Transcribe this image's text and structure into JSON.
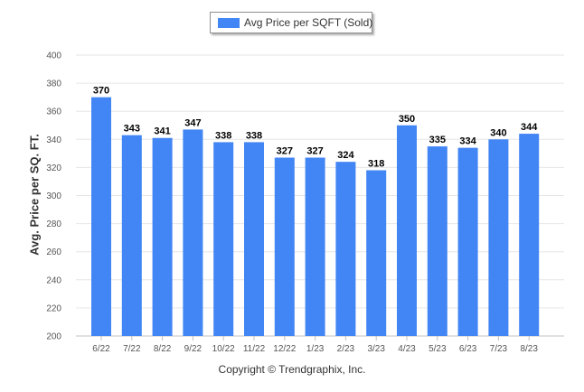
{
  "chart_data": {
    "type": "bar",
    "categories": [
      "6/22",
      "7/22",
      "8/22",
      "9/22",
      "10/22",
      "11/22",
      "12/22",
      "1/23",
      "2/23",
      "3/23",
      "4/23",
      "5/23",
      "6/23",
      "7/23",
      "8/23"
    ],
    "series": [
      {
        "name": "Avg Price per SQFT (Sold)",
        "values": [
          370,
          343,
          341,
          347,
          338,
          338,
          327,
          327,
          324,
          318,
          350,
          335,
          334,
          340,
          344
        ],
        "color": "#4285f4"
      }
    ],
    "ylabel": "Avg. Price per SQ. FT.",
    "ylim": [
      200,
      400
    ],
    "yticks": [
      200,
      220,
      240,
      260,
      280,
      300,
      320,
      340,
      360,
      380,
      400
    ],
    "legend_position": "top-center",
    "grid": true
  },
  "footer": {
    "copyright": "Copyright © Trendgraphix, Inc."
  }
}
